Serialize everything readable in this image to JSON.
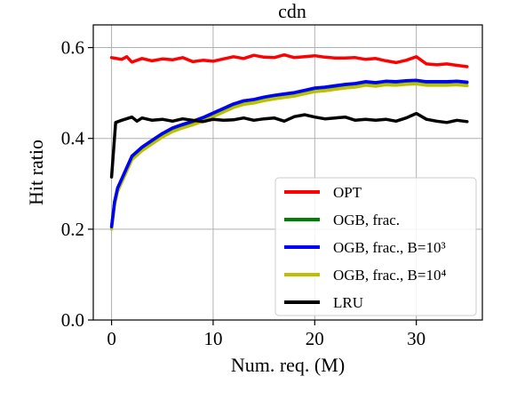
{
  "chart_data": {
    "type": "line",
    "title": "cdn",
    "xlabel": "Num. req. (M)",
    "ylabel": "Hit ratio",
    "xlim": [
      -1.8,
      36.5
    ],
    "ylim": [
      0.0,
      0.65
    ],
    "xticks": [
      0,
      10,
      20,
      30
    ],
    "yticks": [
      0.0,
      0.2,
      0.4,
      0.6
    ],
    "xtick_labels": [
      "0",
      "10",
      "20",
      "30"
    ],
    "ytick_labels": [
      "0.0",
      "0.2",
      "0.4",
      "0.6"
    ],
    "grid": true,
    "legend_position": "lower-right",
    "series": [
      {
        "name": "OPT",
        "color": "#ff0000",
        "x": [
          0,
          1,
          1.5,
          2,
          3,
          4,
          5,
          6,
          7,
          8,
          9,
          10,
          11,
          12,
          13,
          14,
          15,
          16,
          17,
          18,
          19,
          20,
          21,
          22,
          23,
          24,
          25,
          26,
          27,
          28,
          29,
          30,
          31,
          32,
          33,
          34,
          35
        ],
        "values": [
          0.578,
          0.574,
          0.58,
          0.568,
          0.576,
          0.571,
          0.575,
          0.573,
          0.578,
          0.569,
          0.572,
          0.57,
          0.575,
          0.58,
          0.576,
          0.583,
          0.579,
          0.578,
          0.584,
          0.578,
          0.58,
          0.582,
          0.579,
          0.577,
          0.577,
          0.578,
          0.574,
          0.576,
          0.571,
          0.567,
          0.572,
          0.58,
          0.564,
          0.562,
          0.564,
          0.561,
          0.558
        ]
      },
      {
        "name": "OGB, frac.",
        "color": "#008000",
        "x": [
          0,
          0.3,
          0.6,
          1,
          1.5,
          2,
          3,
          4,
          5,
          6,
          7,
          8,
          9,
          10,
          11,
          12,
          13,
          14,
          15,
          16,
          17,
          18,
          19,
          20,
          21,
          22,
          23,
          24,
          25,
          26,
          27,
          28,
          29,
          30,
          31,
          32,
          33,
          34,
          35
        ],
        "values": [
          0.205,
          0.26,
          0.29,
          0.31,
          0.335,
          0.36,
          0.38,
          0.395,
          0.41,
          0.422,
          0.43,
          0.437,
          0.445,
          0.455,
          0.465,
          0.475,
          0.482,
          0.485,
          0.49,
          0.494,
          0.497,
          0.5,
          0.505,
          0.51,
          0.512,
          0.515,
          0.518,
          0.52,
          0.524,
          0.522,
          0.525,
          0.524,
          0.526,
          0.527,
          0.524,
          0.524,
          0.524,
          0.525,
          0.523
        ]
      },
      {
        "name": "OGB, frac., B=10³",
        "color": "#0000ff",
        "x": [
          0,
          0.3,
          0.6,
          1,
          1.5,
          2,
          3,
          4,
          5,
          6,
          7,
          8,
          9,
          10,
          11,
          12,
          13,
          14,
          15,
          16,
          17,
          18,
          19,
          20,
          21,
          22,
          23,
          24,
          25,
          26,
          27,
          28,
          29,
          30,
          31,
          32,
          33,
          34,
          35
        ],
        "values": [
          0.206,
          0.261,
          0.291,
          0.311,
          0.336,
          0.361,
          0.381,
          0.396,
          0.411,
          0.423,
          0.431,
          0.438,
          0.446,
          0.456,
          0.466,
          0.476,
          0.483,
          0.486,
          0.491,
          0.495,
          0.498,
          0.501,
          0.506,
          0.511,
          0.513,
          0.516,
          0.519,
          0.521,
          0.525,
          0.523,
          0.526,
          0.525,
          0.527,
          0.528,
          0.525,
          0.525,
          0.525,
          0.526,
          0.524
        ]
      },
      {
        "name": "OGB, frac., B=10⁴",
        "color": "#bfbf00",
        "x": [
          0,
          0.3,
          0.6,
          1,
          1.5,
          2,
          3,
          4,
          5,
          6,
          7,
          8,
          9,
          10,
          11,
          12,
          13,
          14,
          15,
          16,
          17,
          18,
          19,
          20,
          21,
          22,
          23,
          24,
          25,
          26,
          27,
          28,
          29,
          30,
          31,
          32,
          33,
          34,
          35
        ],
        "values": [
          0.2,
          0.253,
          0.283,
          0.303,
          0.328,
          0.353,
          0.373,
          0.388,
          0.403,
          0.415,
          0.423,
          0.43,
          0.438,
          0.448,
          0.458,
          0.468,
          0.475,
          0.478,
          0.483,
          0.487,
          0.49,
          0.493,
          0.498,
          0.503,
          0.505,
          0.508,
          0.511,
          0.513,
          0.517,
          0.515,
          0.518,
          0.517,
          0.519,
          0.52,
          0.517,
          0.517,
          0.517,
          0.518,
          0.516
        ]
      },
      {
        "name": "LRU",
        "color": "#000000",
        "x": [
          0,
          0.4,
          1,
          2,
          2.5,
          3,
          4,
          5,
          6,
          7,
          8,
          9,
          10,
          11,
          12,
          13,
          14,
          15,
          16,
          17,
          18,
          19,
          20,
          21,
          22,
          23,
          24,
          25,
          26,
          27,
          28,
          29,
          30,
          31,
          32,
          33,
          34,
          35
        ],
        "values": [
          0.315,
          0.435,
          0.44,
          0.447,
          0.438,
          0.445,
          0.44,
          0.442,
          0.438,
          0.443,
          0.44,
          0.437,
          0.442,
          0.44,
          0.441,
          0.445,
          0.44,
          0.443,
          0.445,
          0.438,
          0.448,
          0.452,
          0.447,
          0.443,
          0.445,
          0.447,
          0.44,
          0.442,
          0.44,
          0.442,
          0.438,
          0.445,
          0.455,
          0.442,
          0.438,
          0.435,
          0.44,
          0.437
        ]
      }
    ]
  }
}
